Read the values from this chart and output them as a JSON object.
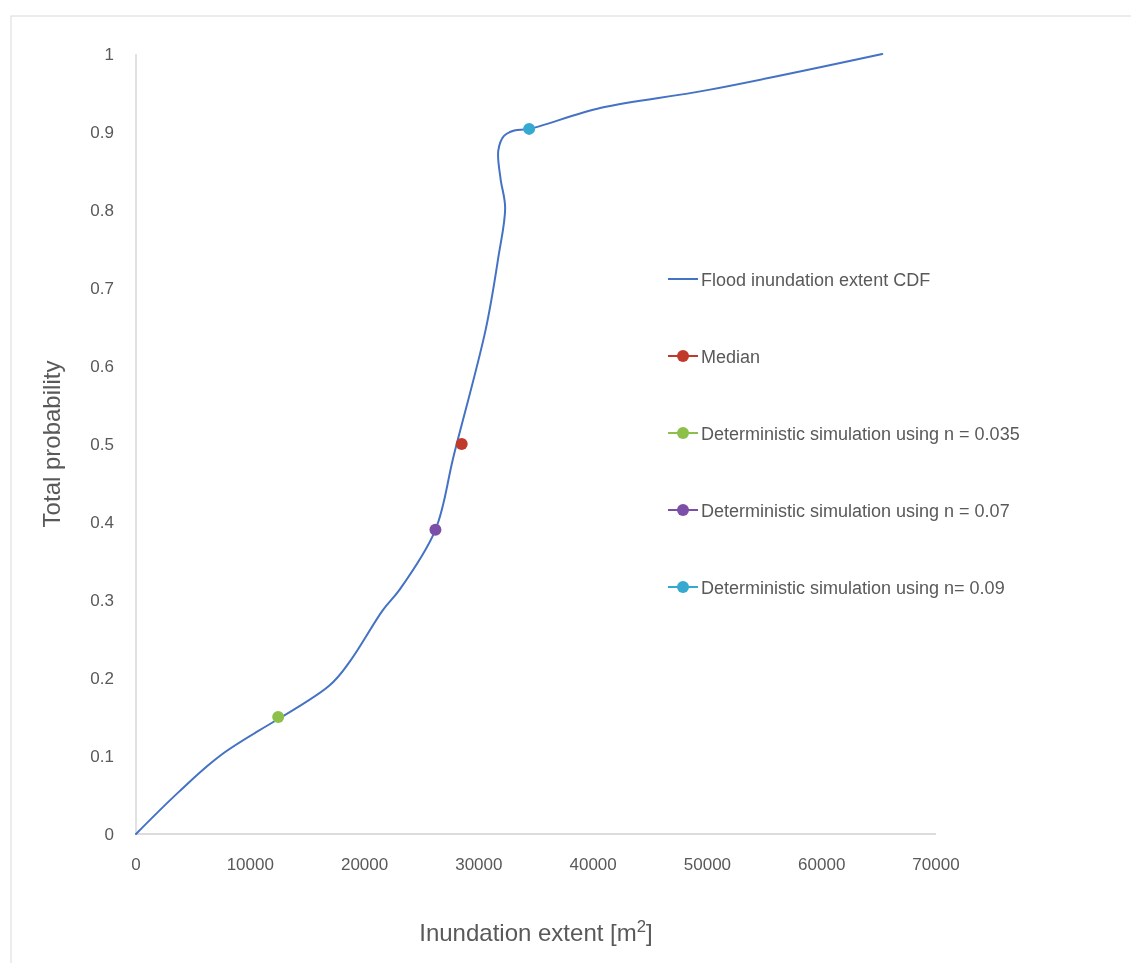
{
  "chart_data": {
    "type": "line",
    "xlabel": "Inundation extent [m$^{2}$]",
    "ylabel": "Total probability",
    "xlim": [
      0,
      70000
    ],
    "ylim": [
      0,
      1
    ],
    "xticks": [
      0,
      10000,
      20000,
      30000,
      40000,
      50000,
      60000,
      70000
    ],
    "yticks": [
      0,
      0.1,
      0.2,
      0.3,
      0.4,
      0.5,
      0.6,
      0.7,
      0.8,
      0.9,
      1
    ],
    "grid": false,
    "legend": "right",
    "series": [
      {
        "name": "Flood inundation extent CDF",
        "color": "#4472c4",
        "marker": "none",
        "x": [
          0,
          3750,
          7500,
          16900,
          18750,
          21600,
          23100,
          26200,
          27800,
          30600,
          31700,
          32300,
          31900,
          31700,
          32200,
          33100,
          34400,
          40700,
          50100,
          65300
        ],
        "values": [
          0,
          0.054,
          0.102,
          0.19,
          0.222,
          0.287,
          0.314,
          0.39,
          0.485,
          0.647,
          0.739,
          0.803,
          0.84,
          0.876,
          0.895,
          0.902,
          0.904,
          0.931,
          0.954,
          1
        ]
      },
      {
        "name": "Median",
        "type": "scatter",
        "color": "#c0392b",
        "marker": "circle",
        "x": [
          28500
        ],
        "values": [
          0.5
        ]
      },
      {
        "name": "Deterministic simulation using n = 0.035",
        "type": "scatter",
        "color": "#8cc04a",
        "marker": "circle",
        "x": [
          12440
        ],
        "values": [
          0.15
        ]
      },
      {
        "name": "Deterministic simulation using n = 0.07",
        "type": "scatter",
        "color": "#7b4fa8",
        "marker": "circle",
        "x": [
          26200
        ],
        "values": [
          0.39
        ]
      },
      {
        "name": "Deterministic simulation using n= 0.09",
        "type": "scatter",
        "color": "#36a9d0",
        "marker": "circle",
        "x": [
          34400
        ],
        "values": [
          0.904
        ]
      }
    ]
  }
}
